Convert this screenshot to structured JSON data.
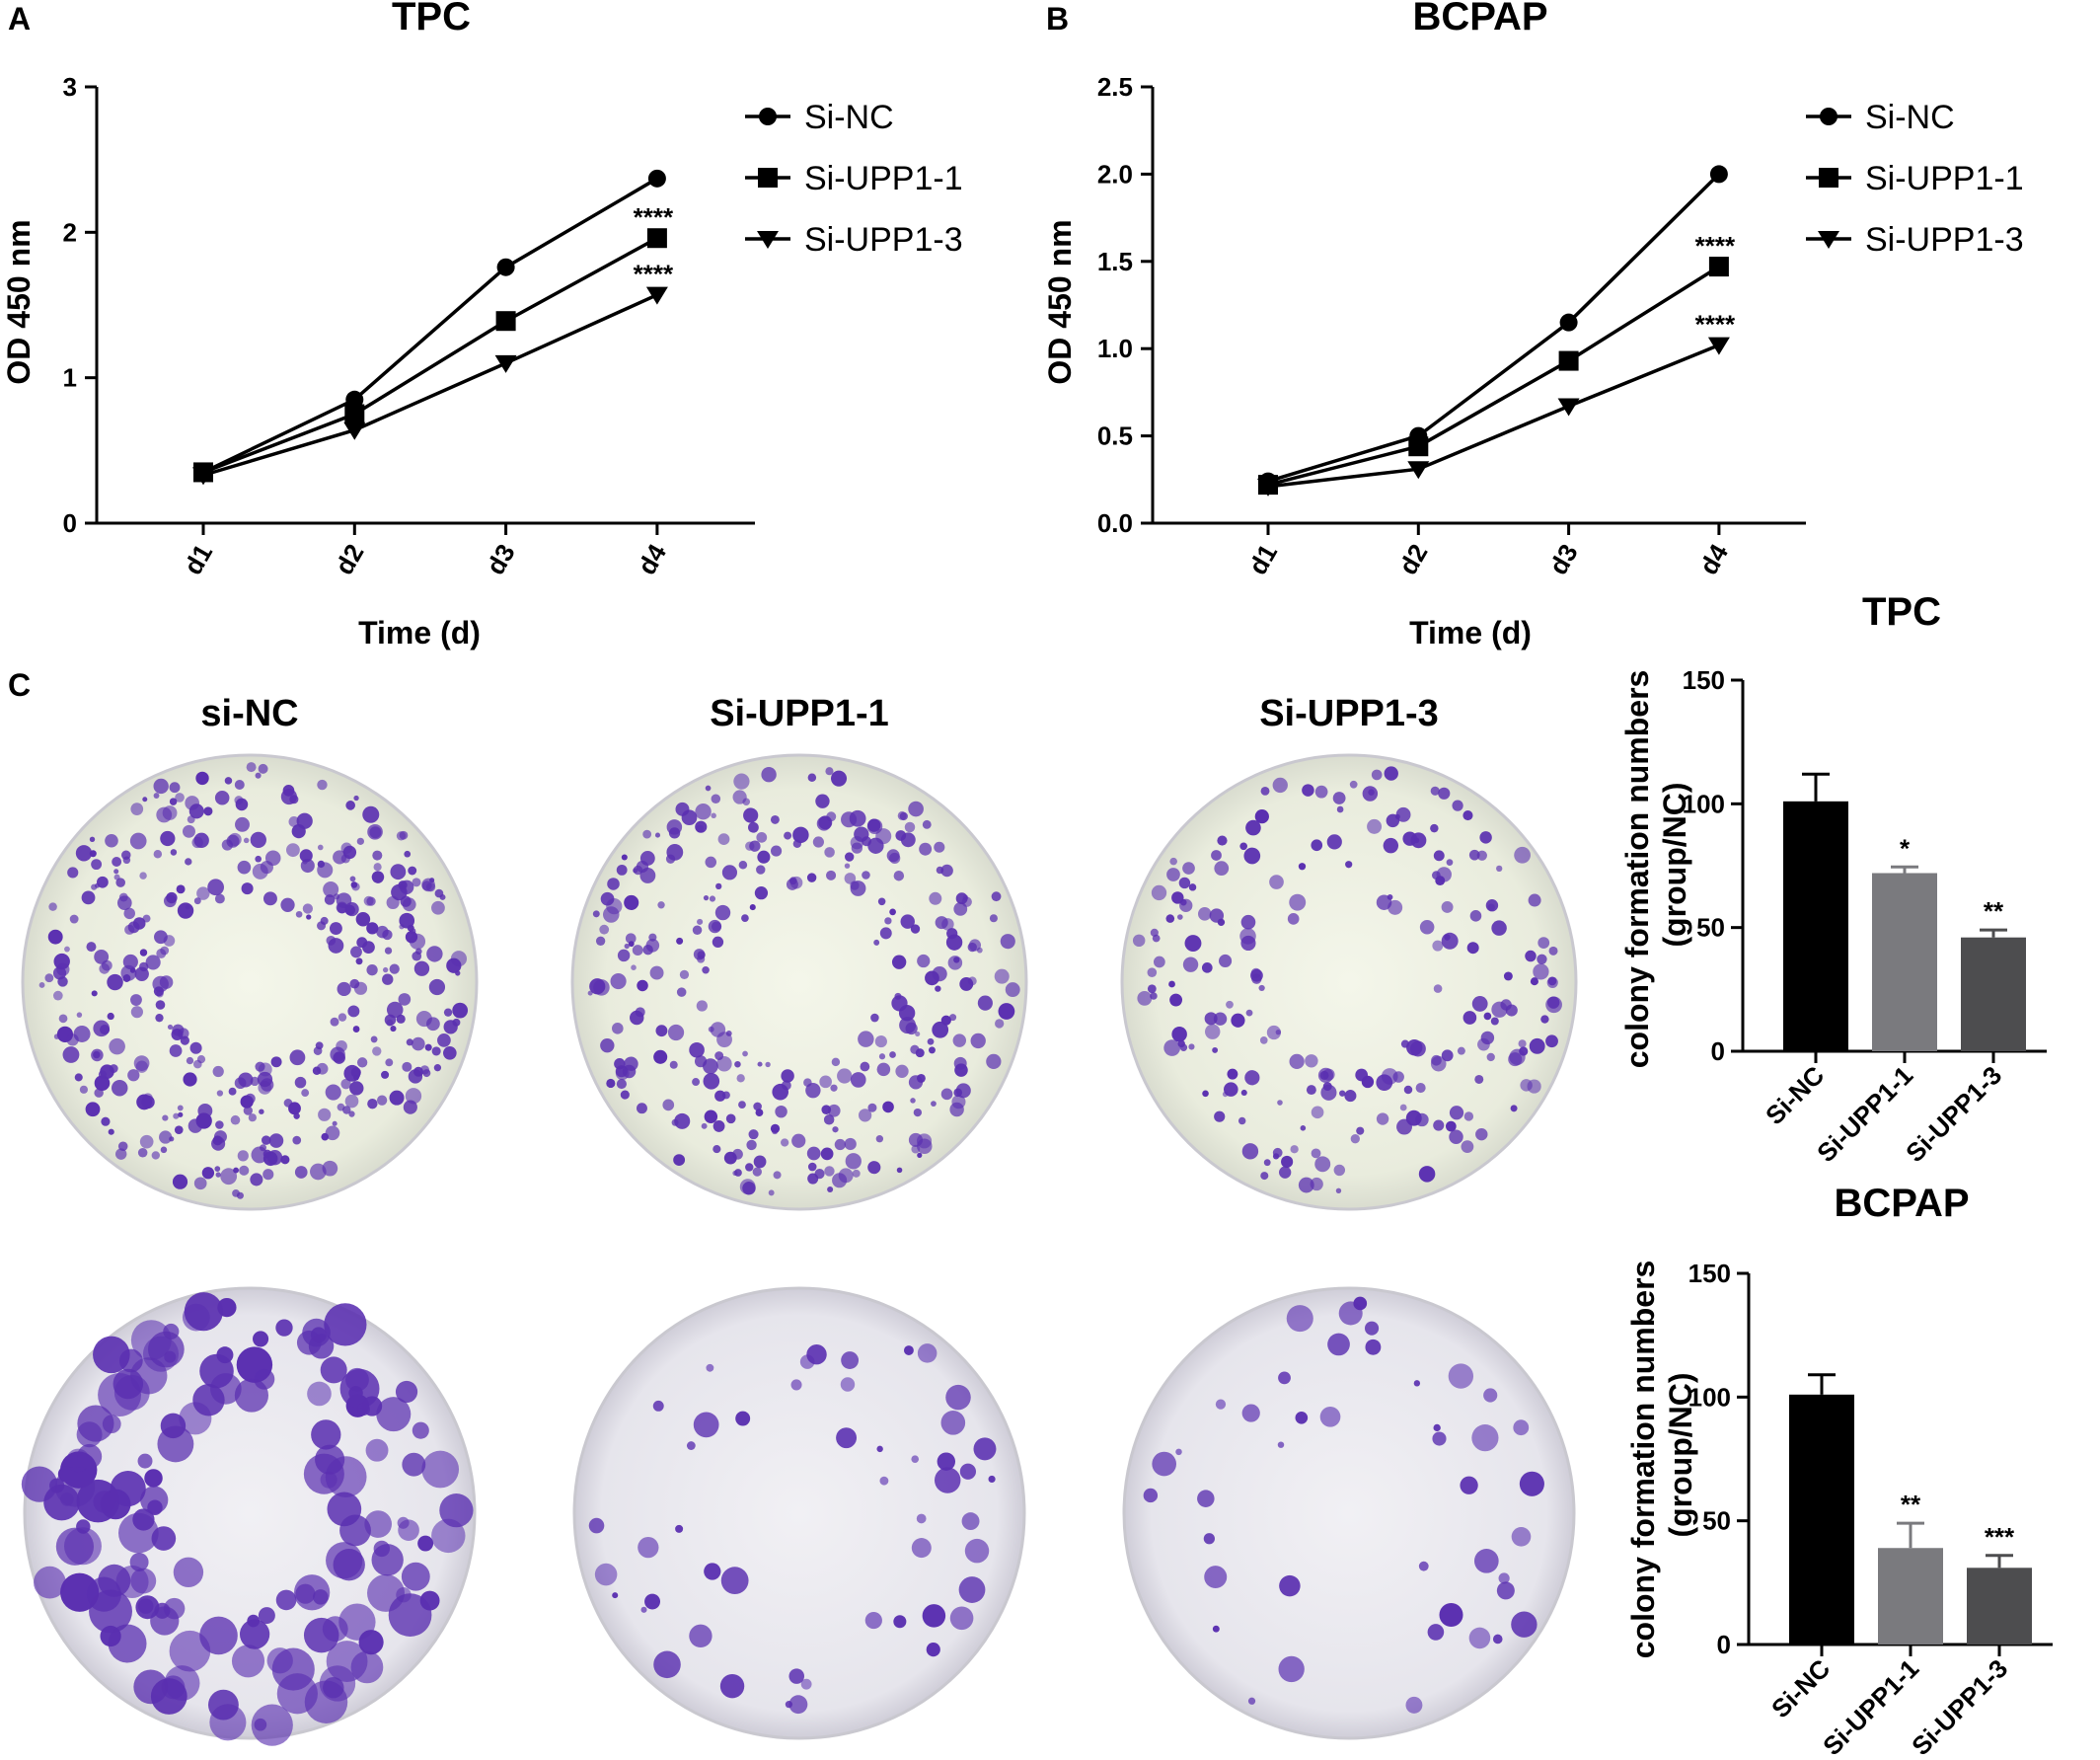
{
  "panels": {
    "A": "A",
    "B": "B",
    "C": "C"
  },
  "colony_headers": [
    "si-NC",
    "Si-UPP1-1",
    "Si-UPP1-3"
  ],
  "colors": {
    "line": "#000000",
    "bar_nc": "#000000",
    "bar_upp1_1": "#7a7a7e",
    "bar_upp1_3": "#4d4d4f",
    "stain": "#5a2fb0",
    "plate": "#eef0e4"
  },
  "colony_plates": {
    "TPC": {
      "density": [
        1.0,
        0.8,
        0.55
      ],
      "size": "small"
    },
    "BCPAP": {
      "density": [
        1.0,
        0.35,
        0.3
      ],
      "size": "large"
    }
  },
  "chart_data": [
    {
      "id": "A",
      "type": "line",
      "title": "TPC",
      "xlabel": "Time (d)",
      "ylabel": "OD 450 nm",
      "categories": [
        "d1",
        "d2",
        "d3",
        "d4"
      ],
      "ylim": [
        0,
        3
      ],
      "yticks": [
        "0",
        "1",
        "2",
        "3"
      ],
      "legend_position": "top-right",
      "series": [
        {
          "name": "Si-NC",
          "marker": "circle",
          "values": [
            0.35,
            0.85,
            1.76,
            2.37
          ]
        },
        {
          "name": "Si-UPP1-1",
          "marker": "square",
          "values": [
            0.35,
            0.75,
            1.39,
            1.96
          ]
        },
        {
          "name": "Si-UPP1-3",
          "marker": "triangle-down",
          "values": [
            0.33,
            0.64,
            1.1,
            1.57
          ]
        }
      ],
      "annotations": [
        {
          "series": "Si-UPP1-1",
          "x": "d4",
          "text": "****"
        },
        {
          "series": "Si-UPP1-3",
          "x": "d4",
          "text": "****"
        }
      ]
    },
    {
      "id": "B",
      "type": "line",
      "title": "BCPAP",
      "xlabel": "Time (d)",
      "ylabel": "OD 450 nm",
      "categories": [
        "d1",
        "d2",
        "d3",
        "d4"
      ],
      "ylim": [
        0,
        2.5
      ],
      "yticks": [
        "0.0",
        "0.5",
        "1.0",
        "1.5",
        "2.0",
        "2.5"
      ],
      "legend_position": "top-right",
      "series": [
        {
          "name": "Si-NC",
          "marker": "circle",
          "values": [
            0.24,
            0.5,
            1.15,
            2.0
          ]
        },
        {
          "name": "Si-UPP1-1",
          "marker": "square",
          "values": [
            0.22,
            0.44,
            0.93,
            1.47
          ]
        },
        {
          "name": "Si-UPP1-3",
          "marker": "triangle-down",
          "values": [
            0.21,
            0.31,
            0.67,
            1.02
          ]
        }
      ],
      "annotations": [
        {
          "series": "Si-UPP1-1",
          "x": "d4",
          "text": "****"
        },
        {
          "series": "Si-UPP1-3",
          "x": "d4",
          "text": "****"
        }
      ]
    },
    {
      "id": "C-TPC",
      "type": "bar",
      "title": "TPC",
      "xlabel": "",
      "ylabel": "colony formation numbers\n(group/NC)",
      "categories": [
        "Si-NC",
        "Si-UPP1-1",
        "Si-UPP1-3"
      ],
      "values": [
        101,
        72,
        46
      ],
      "errors": [
        11,
        2.5,
        3
      ],
      "ylim": [
        0,
        150
      ],
      "yticks": [
        "0",
        "50",
        "100",
        "150"
      ],
      "significance": [
        "",
        "*",
        "**"
      ]
    },
    {
      "id": "C-BCPAP",
      "type": "bar",
      "title": "BCPAP",
      "xlabel": "",
      "ylabel": "colony formation numbers\n(group/NC)",
      "categories": [
        "Si-NC",
        "Si-UPP1-1",
        "Si-UPP1-3"
      ],
      "values": [
        101,
        39,
        31
      ],
      "errors": [
        8,
        10,
        5
      ],
      "ylim": [
        0,
        150
      ],
      "yticks": [
        "0",
        "50",
        "100",
        "150"
      ],
      "significance": [
        "",
        "**",
        "***"
      ]
    }
  ]
}
